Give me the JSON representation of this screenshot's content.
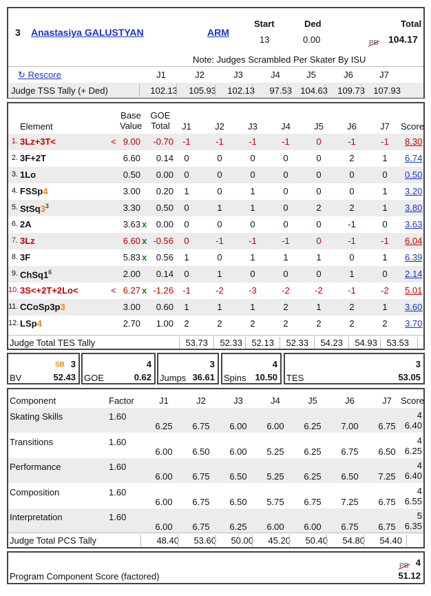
{
  "header": {
    "rank": "3",
    "skater": "Anastasiya GALUSTYAN",
    "nation": "ARM",
    "start_label": "Start",
    "start": "13",
    "ded_label": "Ded",
    "ded": "0.00",
    "total_label": "Total",
    "pb": "PB",
    "total": "104.17",
    "note": "Note: Judges Scrambled Per Skater By ISU",
    "rescore": "Rescore"
  },
  "judges": [
    "J1",
    "J2",
    "J3",
    "J4",
    "J5",
    "J6",
    "J7"
  ],
  "tss": {
    "label": "Judge TSS Tally (+ Ded)",
    "values": [
      "102.13",
      "105.93",
      "102.13",
      "97.53",
      "104.63",
      "109.73",
      "107.93"
    ]
  },
  "elements_header": {
    "element": "Element",
    "base1": "Base",
    "base2": "Value",
    "goe1": "GOE",
    "goe2": "Total",
    "score": "Score"
  },
  "elements": [
    {
      "num": "1.",
      "name": "3Lz+3T<",
      "level": "",
      "sup": "",
      "flag": "<",
      "bv": "9.00",
      "x": "",
      "goe": "-0.70",
      "j": [
        "-1",
        "-1",
        "-1",
        "-1",
        "0",
        "-1",
        "-1"
      ],
      "score": "8.30",
      "red": true
    },
    {
      "num": "2.",
      "name": "3F+2T",
      "level": "",
      "sup": "",
      "flag": "",
      "bv": "6.60",
      "x": "",
      "goe": "0.14",
      "j": [
        "0",
        "0",
        "0",
        "0",
        "0",
        "2",
        "1"
      ],
      "score": "6.74",
      "red": false
    },
    {
      "num": "3.",
      "name": "1Lo",
      "level": "",
      "sup": "",
      "flag": "",
      "bv": "0.50",
      "x": "",
      "goe": "0.00",
      "j": [
        "0",
        "0",
        "0",
        "0",
        "0",
        "0",
        "0"
      ],
      "score": "0.50",
      "red": false
    },
    {
      "num": "4.",
      "name": "FSSp",
      "level": "4",
      "sup": "",
      "flag": "",
      "bv": "3.00",
      "x": "",
      "goe": "0.20",
      "j": [
        "1",
        "0",
        "1",
        "0",
        "0",
        "0",
        "1"
      ],
      "score": "3.20",
      "red": false
    },
    {
      "num": "5.",
      "name": "StSq",
      "level": "3",
      "sup": "3",
      "flag": "",
      "bv": "3.30",
      "x": "",
      "goe": "0.50",
      "j": [
        "0",
        "1",
        "1",
        "0",
        "2",
        "2",
        "1"
      ],
      "score": "3.80",
      "red": false
    },
    {
      "num": "6.",
      "name": "2A",
      "level": "",
      "sup": "",
      "flag": "",
      "bv": "3.63",
      "x": "x",
      "goe": "0.00",
      "j": [
        "0",
        "0",
        "0",
        "0",
        "0",
        "-1",
        "0"
      ],
      "score": "3.63",
      "red": false
    },
    {
      "num": "7.",
      "name": "3Lz",
      "level": "",
      "sup": "",
      "flag": "",
      "bv": "6.60",
      "x": "x",
      "goe": "-0.56",
      "j": [
        "0",
        "-1",
        "-1",
        "-1",
        "0",
        "-1",
        "-1"
      ],
      "score": "6.04",
      "red": true
    },
    {
      "num": "8.",
      "name": "3F",
      "level": "",
      "sup": "",
      "flag": "",
      "bv": "5.83",
      "x": "x",
      "goe": "0.56",
      "j": [
        "1",
        "0",
        "1",
        "1",
        "1",
        "0",
        "1"
      ],
      "score": "6.39",
      "red": false
    },
    {
      "num": "9.",
      "name": "ChSq1",
      "level": "",
      "sup": "6",
      "flag": "",
      "bv": "2.00",
      "x": "",
      "goe": "0.14",
      "j": [
        "0",
        "1",
        "0",
        "0",
        "0",
        "1",
        "0"
      ],
      "score": "2.14",
      "red": false
    },
    {
      "num": "10.",
      "name": "3S<+2T+2Lo<",
      "level": "",
      "sup": "",
      "flag": "<",
      "bv": "6.27",
      "x": "x",
      "goe": "-1.26",
      "j": [
        "-1",
        "-2",
        "-3",
        "-2",
        "-2",
        "-1",
        "-2"
      ],
      "score": "5.01",
      "red": true
    },
    {
      "num": "11.",
      "name": "CCoSp3p",
      "level": "3",
      "sup": "",
      "flag": "",
      "bv": "3.00",
      "x": "",
      "goe": "0.60",
      "j": [
        "1",
        "1",
        "1",
        "2",
        "1",
        "2",
        "1"
      ],
      "score": "3.60",
      "red": false
    },
    {
      "num": "12.",
      "name": "LSp",
      "level": "4",
      "sup": "",
      "flag": "",
      "bv": "2.70",
      "x": "",
      "goe": "1.00",
      "j": [
        "2",
        "2",
        "2",
        "2",
        "2",
        "2",
        "2"
      ],
      "score": "3.70",
      "red": false
    }
  ],
  "tes_tally": {
    "label": "Judge Total TES Tally",
    "values": [
      "53.73",
      "52.33",
      "52.13",
      "52.33",
      "54.23",
      "54.93",
      "53.53"
    ]
  },
  "summary": {
    "bv": {
      "label": "BV",
      "sb": "SB",
      "rank": "3",
      "value": "52.43"
    },
    "goe": {
      "label": "GOE",
      "rank": "4",
      "value": "0.62"
    },
    "jumps": {
      "label": "Jumps",
      "rank": "3",
      "value": "36.61"
    },
    "spins": {
      "label": "Spins",
      "rank": "4",
      "value": "10.50"
    },
    "tes": {
      "label": "TES",
      "rank": "3",
      "value": "53.05"
    }
  },
  "pcs_header": {
    "component": "Component",
    "factor": "Factor",
    "score": "Score"
  },
  "components": [
    {
      "name": "Skating Skills",
      "factor": "1.60",
      "j": [
        "6.25",
        "6.75",
        "6.00",
        "6.00",
        "6.25",
        "7.00",
        "6.75"
      ],
      "rank": "4",
      "score": "6.40"
    },
    {
      "name": "Transitions",
      "factor": "1.60",
      "j": [
        "6.00",
        "6.50",
        "6.00",
        "5.25",
        "6.25",
        "6.75",
        "6.50"
      ],
      "rank": "4",
      "score": "6.25"
    },
    {
      "name": "Performance",
      "factor": "1.60",
      "j": [
        "6.00",
        "6.75",
        "6.50",
        "5.25",
        "6.25",
        "6.50",
        "7.25"
      ],
      "rank": "4",
      "score": "6.40"
    },
    {
      "name": "Composition",
      "factor": "1.60",
      "j": [
        "6.00",
        "6.75",
        "6.50",
        "5.75",
        "6.75",
        "7.25",
        "6.75"
      ],
      "rank": "4",
      "score": "6.55"
    },
    {
      "name": "Interpretation",
      "factor": "1.60",
      "j": [
        "6.00",
        "6.75",
        "6.25",
        "6.00",
        "6.00",
        "6.75",
        "6.75"
      ],
      "rank": "5",
      "score": "6.35"
    }
  ],
  "pcs_tally": {
    "label": "Judge Total PCS Tally",
    "values": [
      "48.40",
      "53.60",
      "50.00",
      "45.20",
      "50.40",
      "54.80",
      "54.40"
    ]
  },
  "pcs_total": {
    "label": "Program Component Score (factored)",
    "pb": "PB",
    "rank": "4",
    "value": "51.12"
  }
}
